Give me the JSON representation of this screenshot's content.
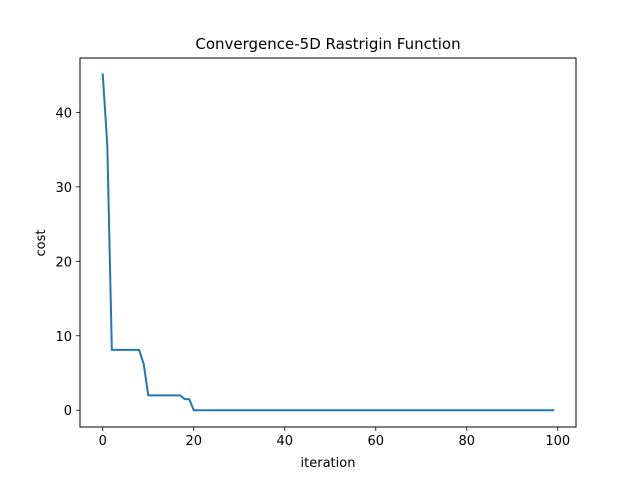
{
  "chart_data": {
    "type": "line",
    "title": "Convergence-5D Rastrigin Function",
    "xlabel": "iteration",
    "ylabel": "cost",
    "xlim": [
      -5,
      104
    ],
    "ylim": [
      -2.25,
      47.3
    ],
    "x_ticks": [
      0,
      20,
      40,
      60,
      80,
      100
    ],
    "y_ticks": [
      0,
      10,
      20,
      30,
      40
    ],
    "grid": false,
    "legend": "none",
    "series": [
      {
        "color": "#1f77b4",
        "x": [
          0,
          1,
          2,
          8,
          9,
          10,
          17,
          18,
          19,
          20,
          99
        ],
        "y": [
          45.1,
          35.6,
          8.1,
          8.1,
          6.2,
          2.0,
          2.0,
          1.5,
          1.5,
          0.0,
          0.0
        ]
      }
    ]
  }
}
